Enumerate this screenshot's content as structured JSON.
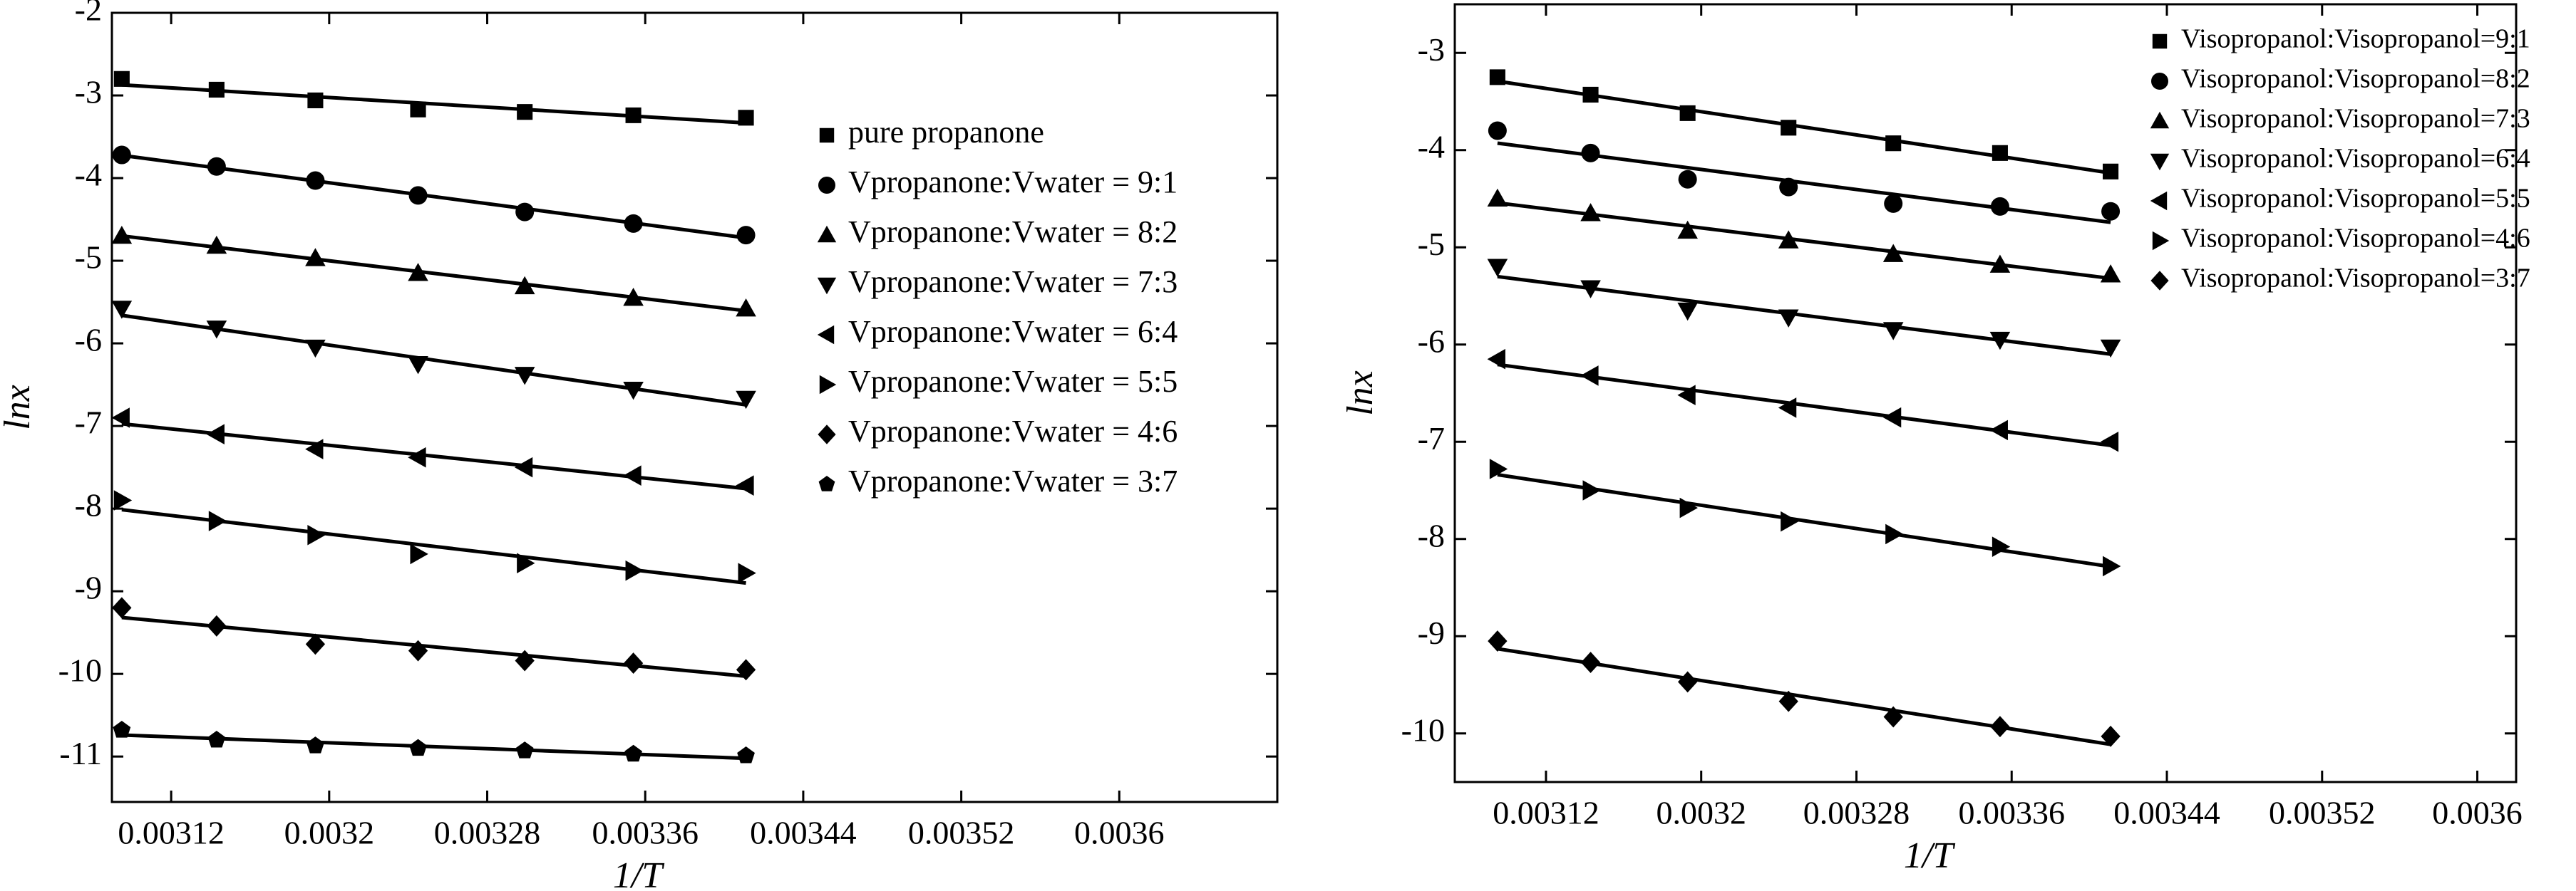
{
  "chart_data": [
    {
      "type": "scatter",
      "xlabel": "1/T",
      "ylabel": "lnx",
      "x": [
        0.003095,
        0.003143,
        0.003193,
        0.003245,
        0.003299,
        0.003354,
        0.003411
      ],
      "xlim": [
        0.00309,
        0.00368
      ],
      "xticks": [
        0.00312,
        0.0032,
        0.00328,
        0.00336,
        0.00344,
        0.00352,
        0.0036
      ],
      "ylim": [
        -11.55,
        -2
      ],
      "yticks": [
        -2,
        -3,
        -4,
        -5,
        -6,
        -7,
        -8,
        -9,
        -10,
        -11
      ],
      "legend": "upper right",
      "series": [
        {
          "name": "pure propanone",
          "color": "#000000",
          "marker": "square",
          "values": [
            -2.8,
            -2.93,
            -3.06,
            -3.17,
            -3.2,
            -3.24,
            -3.27
          ]
        },
        {
          "name": "Vpropanone:Vwater = 9:1",
          "color": "#000000",
          "marker": "circle",
          "values": [
            -3.72,
            -3.86,
            -4.03,
            -4.21,
            -4.41,
            -4.55,
            -4.69
          ]
        },
        {
          "name": "Vpropanone:Vwater = 8:2",
          "color": "#000000",
          "marker": "triangle-up",
          "values": [
            -4.7,
            -4.82,
            -4.97,
            -5.15,
            -5.31,
            -5.45,
            -5.58
          ]
        },
        {
          "name": "Vpropanone:Vwater = 7:3",
          "color": "#000000",
          "marker": "triangle-down",
          "values": [
            -5.58,
            -5.82,
            -6.05,
            -6.25,
            -6.38,
            -6.56,
            -6.67
          ]
        },
        {
          "name": "Vpropanone:Vwater = 6:4",
          "color": "#000000",
          "marker": "triangle-left",
          "values": [
            -6.9,
            -7.1,
            -7.28,
            -7.38,
            -7.5,
            -7.6,
            -7.72
          ]
        },
        {
          "name": "Vpropanone:Vwater = 5:5",
          "color": "#000000",
          "marker": "triangle-right",
          "values": [
            -7.9,
            -8.15,
            -8.32,
            -8.55,
            -8.66,
            -8.75,
            -8.78
          ]
        },
        {
          "name": "Vpropanone:Vwater = 4:6",
          "color": "#000000",
          "marker": "diamond",
          "values": [
            -9.2,
            -9.42,
            -9.64,
            -9.72,
            -9.84,
            -9.87,
            -9.95
          ]
        },
        {
          "name": "Vpropanone:Vwater = 3:7",
          "color": "#000000",
          "marker": "pentagon",
          "values": [
            -10.68,
            -10.8,
            -10.87,
            -10.9,
            -10.93,
            -10.97,
            -10.99
          ]
        }
      ]
    },
    {
      "type": "scatter",
      "xlabel": "1/T",
      "ylabel": "lnx",
      "x": [
        0.003095,
        0.003143,
        0.003193,
        0.003245,
        0.003299,
        0.003354,
        0.003411
      ],
      "xlim": [
        0.003073,
        0.00362
      ],
      "xticks": [
        0.00312,
        0.0032,
        0.00328,
        0.00336,
        0.00344,
        0.00352,
        0.0036
      ],
      "ylim": [
        -10.5,
        -2.5
      ],
      "yticks": [
        -3,
        -4,
        -5,
        -6,
        -7,
        -8,
        -9,
        -10
      ],
      "legend": "upper right",
      "series": [
        {
          "name": "Visopropanol:Visopropanol=9:1",
          "color": "#000000",
          "marker": "square",
          "values": [
            -3.25,
            -3.43,
            -3.62,
            -3.77,
            -3.93,
            -4.03,
            -4.22
          ]
        },
        {
          "name": "Visopropanol:Visopropanol=8:2",
          "color": "#000000",
          "marker": "circle",
          "values": [
            -3.8,
            -4.03,
            -4.3,
            -4.38,
            -4.55,
            -4.58,
            -4.63
          ]
        },
        {
          "name": "Visopropanol:Visopropanol=7:3",
          "color": "#000000",
          "marker": "triangle-up",
          "values": [
            -4.5,
            -4.65,
            -4.83,
            -4.93,
            -5.07,
            -5.18,
            -5.28
          ]
        },
        {
          "name": "Visopropanol:Visopropanol=6:4",
          "color": "#000000",
          "marker": "triangle-down",
          "values": [
            -5.2,
            -5.42,
            -5.65,
            -5.72,
            -5.85,
            -5.95,
            -6.03
          ]
        },
        {
          "name": "Visopropanol:Visopropanol=5:5",
          "color": "#000000",
          "marker": "triangle-left",
          "values": [
            -6.15,
            -6.32,
            -6.52,
            -6.65,
            -6.75,
            -6.88,
            -7.0
          ]
        },
        {
          "name": "Visopropanol:Visopropanol=4:6",
          "color": "#000000",
          "marker": "triangle-right",
          "values": [
            -7.28,
            -7.5,
            -7.68,
            -7.82,
            -7.95,
            -8.08,
            -8.28
          ]
        },
        {
          "name": "Visopropanol:Visopropanol=3:7",
          "color": "#000000",
          "marker": "diamond",
          "values": [
            -9.05,
            -9.27,
            -9.47,
            -9.67,
            -9.83,
            -9.93,
            -10.03
          ]
        }
      ]
    }
  ]
}
